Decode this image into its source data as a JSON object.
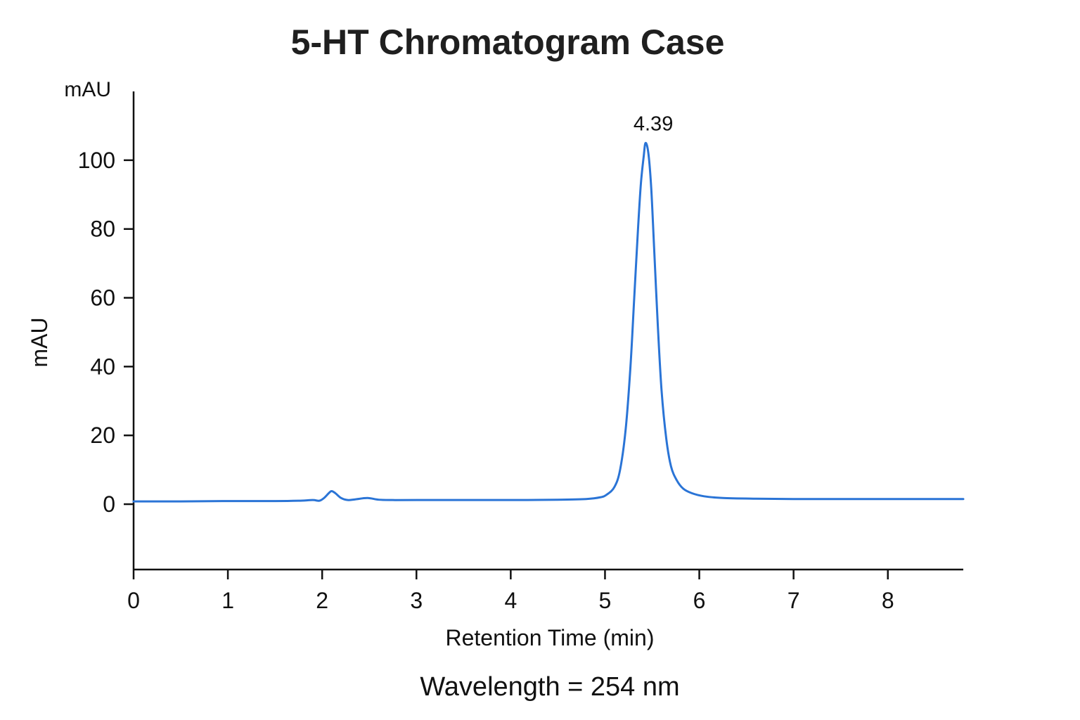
{
  "chart_data": {
    "type": "line",
    "title": "5-HT Chromatogram Case",
    "xlabel": "Retention Time (min)",
    "ylabel": "mAU",
    "y_unit_label": "mAU",
    "caption": "Wavelength = 254 nm",
    "xlim": [
      0,
      8.8
    ],
    "ylim": [
      -19,
      120
    ],
    "x_ticks": [
      0,
      1,
      2,
      3,
      4,
      5,
      6,
      7,
      8
    ],
    "y_ticks": [
      0,
      20,
      40,
      60,
      80,
      100
    ],
    "grid": false,
    "legend": "none",
    "series": [
      {
        "color": "#2a74d6",
        "x": [
          0,
          0.5,
          1.0,
          1.5,
          1.75,
          1.9,
          1.97,
          2.02,
          2.07,
          2.1,
          2.14,
          2.2,
          2.27,
          2.35,
          2.48,
          2.6,
          2.75,
          3.0,
          3.5,
          4.0,
          4.5,
          4.8,
          4.95,
          5.02,
          5.1,
          5.16,
          5.22,
          5.27,
          5.31,
          5.35,
          5.38,
          5.41,
          5.43,
          5.46,
          5.49,
          5.52,
          5.56,
          5.6,
          5.65,
          5.7,
          5.76,
          5.83,
          5.92,
          6.05,
          6.25,
          6.6,
          7.0,
          7.5,
          8.0,
          8.8
        ],
        "y": [
          0.8,
          0.8,
          0.9,
          0.9,
          1.0,
          1.2,
          1.0,
          1.8,
          3.2,
          3.8,
          3.2,
          1.8,
          1.2,
          1.4,
          1.8,
          1.3,
          1.2,
          1.2,
          1.2,
          1.2,
          1.3,
          1.5,
          2.0,
          2.8,
          5.0,
          10.0,
          22.0,
          40.0,
          60.0,
          80.0,
          93.0,
          101.0,
          105.0,
          102.0,
          92.0,
          75.0,
          52.0,
          33.0,
          19.0,
          11.0,
          7.0,
          4.5,
          3.2,
          2.3,
          1.8,
          1.6,
          1.5,
          1.5,
          1.5,
          1.5
        ]
      }
    ],
    "annotations": [
      {
        "text": "4.39",
        "x": 5.43,
        "y": 105
      }
    ]
  }
}
